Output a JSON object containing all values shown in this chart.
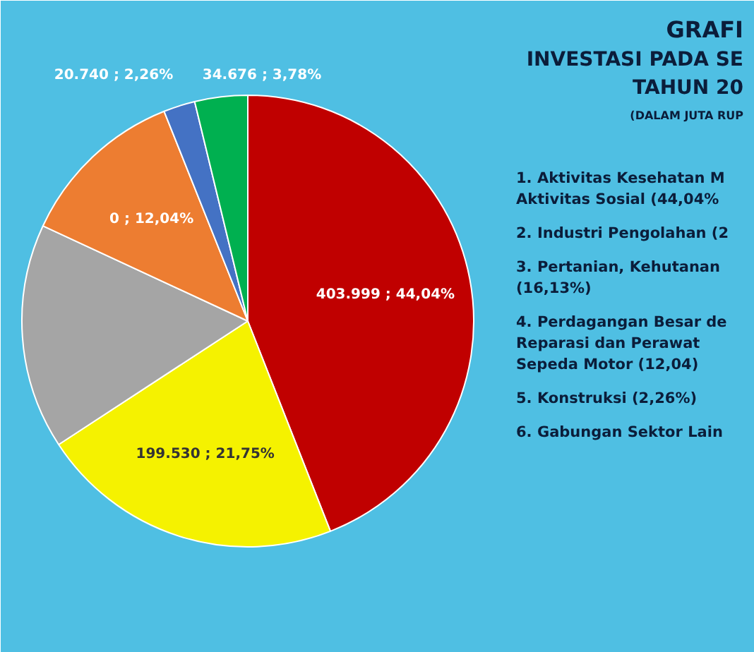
{
  "chart_data": {
    "type": "pie",
    "title": "GRAFI",
    "subtitle": "INVESTASI PADA SE",
    "annotations": [
      "TAHUN 20",
      "(DALAM JUTA RUP",
      "1. Aktivitas Kesehatan M Aktivitas Sosial (44,04%",
      "2. Industri Pengolahan (2",
      "3. Pertanian, Kehutanan (16,13%)",
      "4. Perdagangan Besar de Reparasi dan Perawat Sepeda Motor (12,04)",
      "5. Konstruksi (2,26%)",
      "6. Gabungan Sektor Lain"
    ],
    "categories": [
      null,
      null,
      null,
      null,
      null,
      null
    ],
    "values": [
      44.04,
      21.75,
      16.13,
      12.04,
      2.26,
      3.78
    ],
    "colors": [
      "#c00000",
      "#f5f200",
      "#a5a5a5",
      "#ed7d31",
      "#4472c4",
      "#00b050"
    ],
    "value_labels": [
      "403.999 ; 44,04%",
      "199.530 ; 21,75%",
      null,
      "0 ; 12,04%",
      "20.740 ; 2,26%",
      "34.676 ; 3,78%"
    ]
  }
}
